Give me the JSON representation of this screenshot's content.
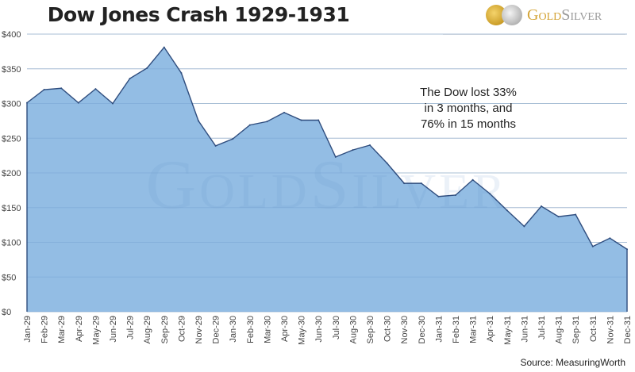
{
  "header": {
    "title": "Dow Jones Crash 1929-1931"
  },
  "logo": {
    "gold": "Gold",
    "silver": "Silver"
  },
  "watermark": "GoldSilver",
  "annotation": [
    "The Dow lost 33%",
    "in 3 months, and",
    "76% in 15 months"
  ],
  "source": "Source: MeasuringWorth",
  "colors": {
    "fill": "#8db9e3",
    "line": "#2f4d7e",
    "grid": "#d9d9d9"
  },
  "chart_data": {
    "type": "area",
    "title": "Dow Jones Crash 1929-1931",
    "xlabel": "",
    "ylabel": "",
    "ylim": [
      0,
      400
    ],
    "yticks": [
      0,
      50,
      100,
      150,
      200,
      250,
      300,
      350,
      400
    ],
    "ytick_labels": [
      "$0",
      "$50",
      "$100",
      "$150",
      "$200",
      "$250",
      "$300",
      "$350",
      "$400"
    ],
    "grid": true,
    "categories": [
      "Jan-29",
      "Feb-29",
      "Mar-29",
      "Apr-29",
      "May-29",
      "Jun-29",
      "Jul-29",
      "Aug-29",
      "Sep-29",
      "Oct-29",
      "Nov-29",
      "Dec-29",
      "Jan-30",
      "Feb-30",
      "Mar-30",
      "Apr-30",
      "May-30",
      "Jun-30",
      "Jul-30",
      "Aug-30",
      "Sep-30",
      "Oct-30",
      "Nov-30",
      "Dec-30",
      "Jan-31",
      "Feb-31",
      "Mar-31",
      "Apr-31",
      "May-31",
      "Jun-31",
      "Jul-31",
      "Aug-31",
      "Sep-31",
      "Oct-31",
      "Nov-31",
      "Dec-31"
    ],
    "values": [
      301,
      320,
      322,
      301,
      321,
      300,
      336,
      351,
      381,
      344,
      275,
      239,
      249,
      269,
      274,
      287,
      276,
      276,
      223,
      233,
      240,
      214,
      185,
      185,
      166,
      168,
      190,
      170,
      146,
      123,
      152,
      137,
      140,
      94,
      106,
      90
    ]
  }
}
